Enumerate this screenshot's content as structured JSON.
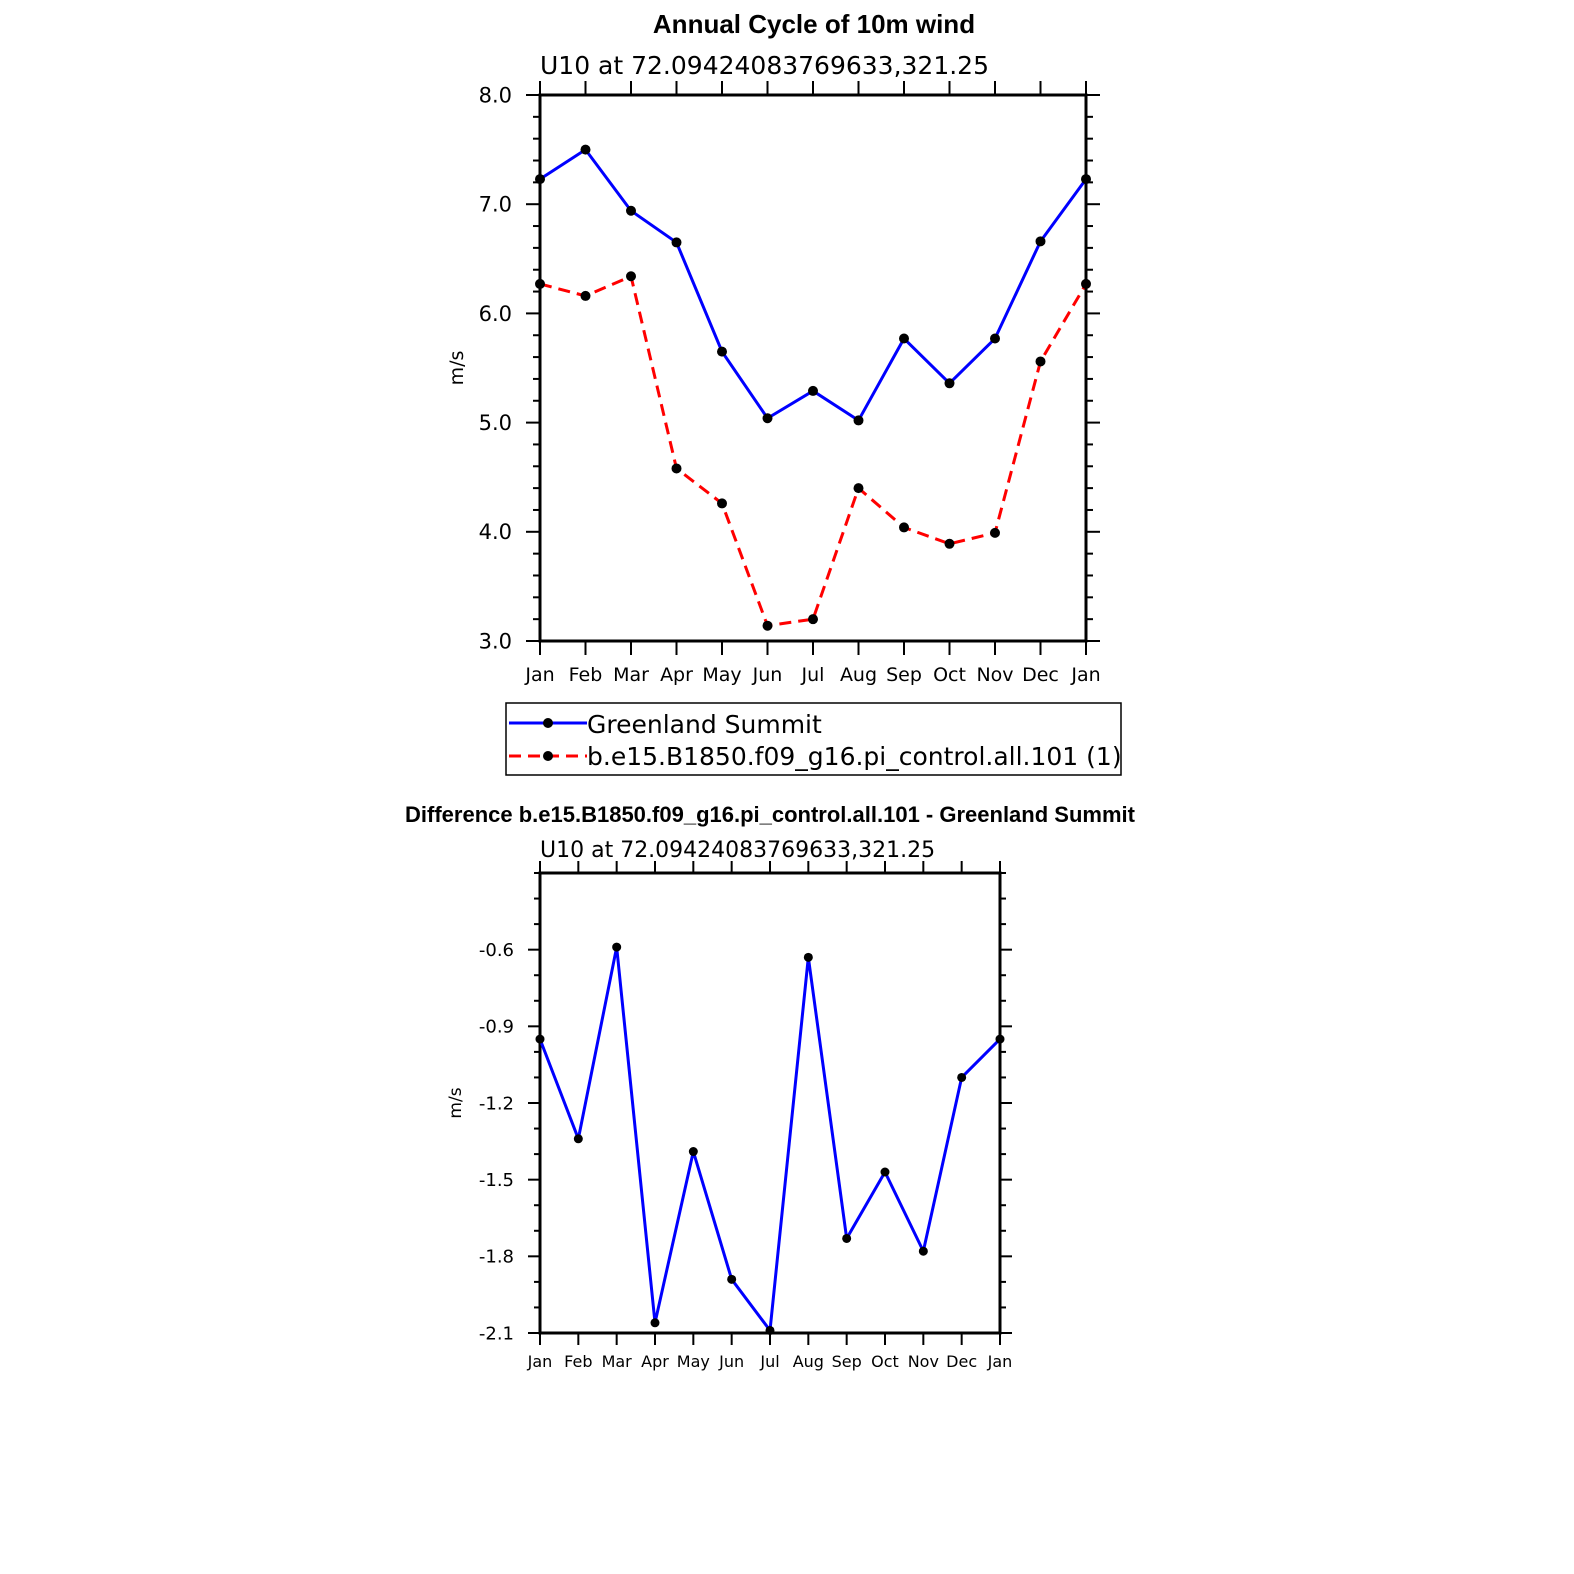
{
  "chart_data": [
    {
      "type": "line",
      "title": "Annual Cycle of 10m wind",
      "subtitle": "U10 at 72.09424083769633,321.25",
      "xlabel": "",
      "ylabel": "m/s",
      "categories": [
        "Jan",
        "Feb",
        "Mar",
        "Apr",
        "May",
        "Jun",
        "Jul",
        "Aug",
        "Sep",
        "Oct",
        "Nov",
        "Dec",
        "Jan"
      ],
      "ylim": [
        3.0,
        8.0
      ],
      "yticks": [
        "3.0",
        "4.0",
        "5.0",
        "6.0",
        "7.0",
        "8.0"
      ],
      "grid": false,
      "legend": "below",
      "series": [
        {
          "name": "Greenland Summit",
          "color": "#0000ff",
          "dash": "solid",
          "values": [
            7.23,
            7.5,
            6.94,
            6.65,
            5.65,
            5.04,
            5.29,
            5.02,
            5.77,
            5.36,
            5.77,
            6.66,
            7.23
          ]
        },
        {
          "name": "b.e15.B1850.f09_g16.pi_control.all.101 (1)",
          "color": "#ff0000",
          "dash": "dashed",
          "values": [
            6.27,
            6.16,
            6.34,
            4.58,
            4.26,
            3.14,
            3.2,
            4.4,
            4.04,
            3.89,
            3.99,
            5.56,
            6.27
          ]
        }
      ]
    },
    {
      "type": "line",
      "title": "Difference b.e15.B1850.f09_g16.pi_control.all.101 - Greenland Summit",
      "subtitle": "U10 at 72.09424083769633,321.25",
      "xlabel": "",
      "ylabel": "m/s",
      "categories": [
        "Jan",
        "Feb",
        "Mar",
        "Apr",
        "May",
        "Jun",
        "Jul",
        "Aug",
        "Sep",
        "Oct",
        "Nov",
        "Dec",
        "Jan"
      ],
      "ylim": [
        -2.1,
        -0.3
      ],
      "yticks": [
        "-2.1",
        "-1.8",
        "-1.5",
        "-1.2",
        "-0.9",
        "-0.6"
      ],
      "grid": false,
      "series": [
        {
          "color": "#0000ff",
          "dash": "solid",
          "values": [
            -0.95,
            -1.34,
            -0.59,
            -2.06,
            -1.39,
            -1.89,
            -2.09,
            -0.63,
            -1.73,
            -1.47,
            -1.78,
            -1.1,
            -0.95
          ]
        }
      ]
    }
  ]
}
